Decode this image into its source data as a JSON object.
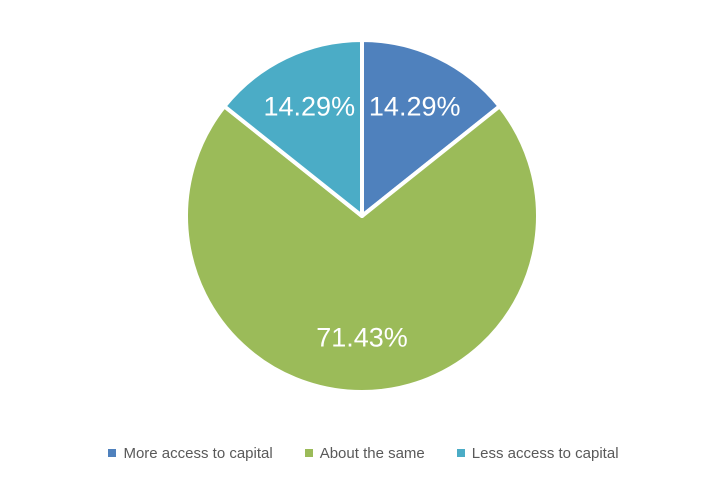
{
  "chart_data": {
    "type": "pie",
    "labels": [
      "More access to capital",
      "About the same",
      "Less access to capital"
    ],
    "values": [
      14.29,
      71.43,
      14.29
    ],
    "data_labels": [
      "14.29%",
      "71.43%",
      "14.29%"
    ],
    "colors": [
      "#4F81BD",
      "#9BBB59",
      "#4BACC6"
    ],
    "title": "",
    "legend_position": "bottom",
    "start_angle_deg": 0,
    "direction": "clockwise",
    "slice_border_color": "#FFFFFF",
    "data_label_color": "#FFFFFF",
    "legend_text_color": "#595959"
  }
}
